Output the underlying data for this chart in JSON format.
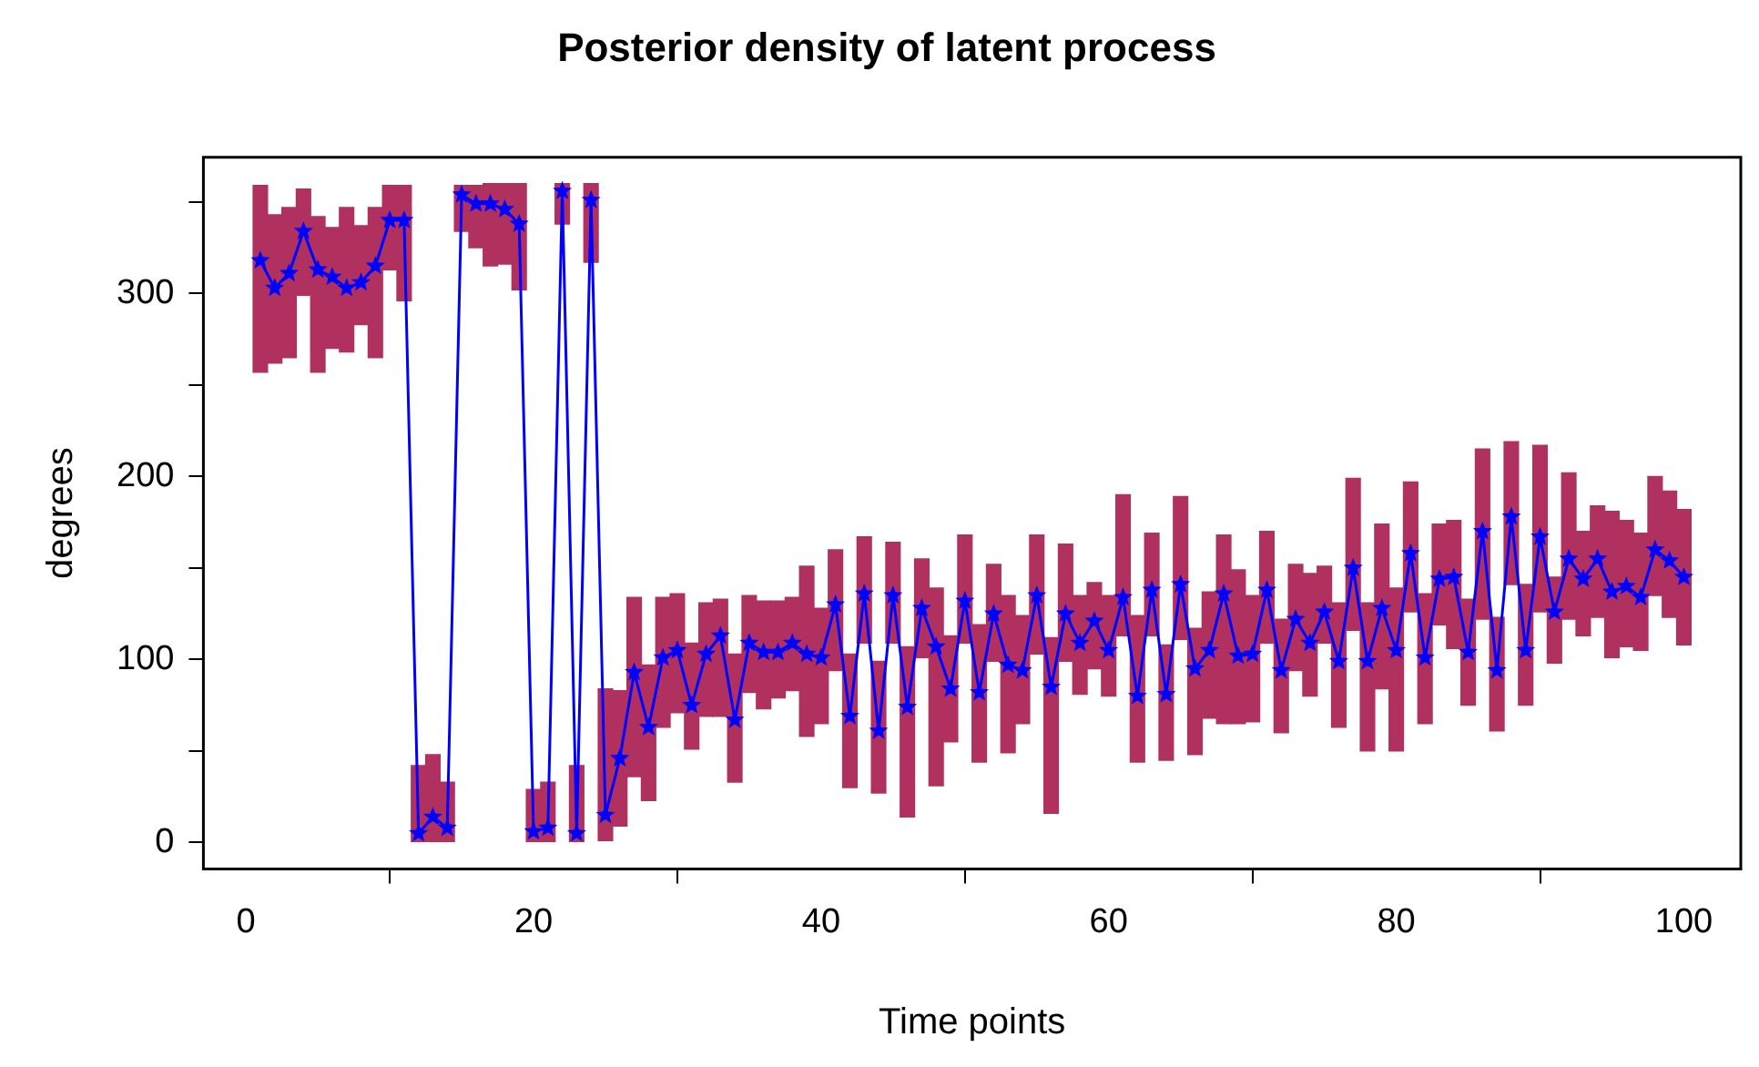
{
  "chart_data": {
    "type": "bar",
    "title": "Posterior density of latent process",
    "xlabel": "Time points",
    "ylabel": "degrees",
    "x": [
      1,
      2,
      3,
      4,
      5,
      6,
      7,
      8,
      9,
      10,
      11,
      12,
      13,
      14,
      15,
      16,
      17,
      18,
      19,
      20,
      21,
      22,
      23,
      24,
      25,
      26,
      27,
      28,
      29,
      30,
      31,
      32,
      33,
      34,
      35,
      36,
      37,
      38,
      39,
      40,
      41,
      42,
      43,
      44,
      45,
      46,
      47,
      48,
      49,
      50,
      51,
      52,
      53,
      54,
      55,
      56,
      57,
      58,
      59,
      60,
      61,
      62,
      63,
      64,
      65,
      66,
      67,
      68,
      69,
      70,
      71,
      72,
      73,
      74,
      75,
      76,
      77,
      78,
      79,
      80,
      81,
      82,
      83,
      84,
      85,
      86,
      87,
      88,
      89,
      90,
      91,
      92,
      93,
      94,
      95,
      96,
      97,
      98,
      99,
      100
    ],
    "xlim": [
      -2.96,
      103.96
    ],
    "xticks": [
      0,
      20,
      40,
      60,
      80,
      100
    ],
    "ylim": [
      -14.4,
      374.4
    ],
    "yticks": [
      0,
      {
        "value": 50,
        "label": null
      },
      100,
      {
        "value": 150,
        "label": null
      },
      200,
      {
        "value": 250,
        "label": null
      },
      300,
      {
        "value": 350,
        "label": null
      }
    ],
    "grid": false,
    "legend": false,
    "series": [
      {
        "color": "#b03060",
        "base": [
          257,
          262,
          265,
          299,
          257,
          270,
          268,
          283,
          265,
          313,
          296,
          0,
          0,
          0,
          334,
          325,
          315,
          316,
          302,
          0,
          0,
          338,
          0,
          317,
          1,
          9,
          36,
          23,
          63,
          71,
          51,
          69,
          69,
          33,
          82,
          73,
          79,
          83,
          58,
          65,
          94,
          30,
          109,
          27,
          109,
          14,
          101,
          31,
          55,
          109,
          44,
          99,
          49,
          65,
          103,
          16,
          99,
          81,
          95,
          80,
          113,
          44,
          113,
          45,
          111,
          48,
          68,
          65,
          65,
          66,
          109,
          60,
          94,
          80,
          109,
          63,
          116,
          50,
          84,
          50,
          126,
          65,
          119,
          106,
          75,
          122,
          61,
          141,
          75,
          126,
          98,
          122,
          113,
          123,
          101,
          107,
          105,
          135,
          123,
          108
        ],
        "values": [
          102,
          81,
          82,
          58,
          85,
          66,
          79,
          54,
          82,
          46,
          63,
          42,
          48,
          33,
          25,
          34,
          45,
          44,
          58,
          29,
          33,
          22,
          42,
          43,
          83,
          74,
          98,
          74,
          71,
          65,
          58,
          62,
          64,
          70,
          53,
          59,
          53,
          51,
          93,
          63,
          66,
          73,
          58,
          72,
          55,
          93,
          54,
          108,
          58,
          59,
          75,
          53,
          86,
          59,
          65,
          96,
          64,
          54,
          47,
          55,
          77,
          80,
          56,
          63,
          78,
          69,
          69,
          103,
          84,
          69,
          61,
          62,
          58,
          67,
          42,
          68,
          83,
          81,
          90,
          89,
          71,
          71,
          55,
          70,
          58,
          93,
          62,
          78,
          66,
          91,
          47,
          80,
          57,
          61,
          80,
          69,
          64,
          65,
          69,
          74
        ]
      },
      {
        "type": "line",
        "color": "#0000ff",
        "marker": "star",
        "line_style": "solid",
        "values": [
          318,
          303,
          311,
          334,
          313,
          309,
          303,
          306,
          315,
          340,
          340,
          5,
          14,
          8,
          354,
          349,
          349,
          346,
          338,
          6,
          8,
          356,
          5,
          351,
          15,
          46,
          93,
          63,
          101,
          105,
          75,
          103,
          113,
          67,
          109,
          104,
          104,
          109,
          103,
          101,
          130,
          69,
          136,
          61,
          135,
          74,
          128,
          107,
          84,
          132,
          82,
          125,
          97,
          94,
          135,
          85,
          125,
          109,
          121,
          105,
          134,
          80,
          138,
          81,
          141,
          95,
          105,
          136,
          102,
          103,
          138,
          94,
          122,
          109,
          126,
          99,
          150,
          99,
          128,
          105,
          158,
          101,
          144,
          145,
          104,
          170,
          94,
          178,
          105,
          167,
          126,
          155,
          144,
          155,
          137,
          140,
          134,
          160,
          154,
          145
        ]
      }
    ]
  }
}
